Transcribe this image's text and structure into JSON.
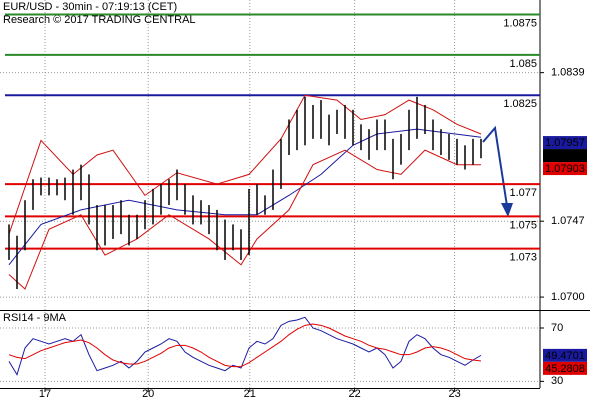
{
  "chart_data": [
    {
      "type": "range",
      "title": "EUR/USD - 30min - 07:19:13 (CET)",
      "subtitle": "Research © 2017 TRADING CENTRAL",
      "x": [
        0,
        1,
        2,
        3,
        4,
        5,
        6,
        7,
        8,
        9,
        10,
        11,
        12,
        13,
        14,
        15,
        16,
        17,
        18,
        19,
        20,
        21,
        22,
        23,
        24,
        25,
        26,
        27,
        28,
        29,
        30,
        31,
        32,
        33,
        34,
        35,
        36,
        37,
        38,
        39,
        40,
        41,
        42,
        43,
        44,
        45,
        46,
        47,
        48,
        49,
        50,
        51,
        52,
        53,
        54,
        55,
        56,
        57,
        58,
        59
      ],
      "xlim": [
        -0.5,
        59.5
      ],
      "xticks": [
        {
          "value": 4.5,
          "label": "17"
        },
        {
          "value": 17.4,
          "label": "20"
        },
        {
          "value": 30.1,
          "label": "21"
        },
        {
          "value": 43.2,
          "label": "22"
        },
        {
          "value": 55.7,
          "label": "23"
        }
      ],
      "ylim": [
        1.0692,
        1.0884
      ],
      "yticks": [
        {
          "value": 1.07,
          "label": "1.0700"
        },
        1.0747,
        1.0839
      ],
      "grid": true,
      "color": "#000000",
      "high": [
        1.0745,
        1.0738,
        1.076,
        1.0773,
        1.0774,
        1.0774,
        1.0773,
        1.0774,
        1.0779,
        1.0782,
        1.0776,
        1.0757,
        1.0757,
        1.0757,
        1.076,
        1.0751,
        1.0751,
        1.076,
        1.0767,
        1.077,
        1.0773,
        1.0779,
        1.077,
        1.0763,
        1.076,
        1.0757,
        1.0754,
        1.0748,
        1.0745,
        1.0742,
        1.0767,
        1.077,
        1.0763,
        1.0779,
        1.0798,
        1.081,
        1.0816,
        1.0824,
        1.0819,
        1.0822,
        1.0813,
        1.0816,
        1.0819,
        1.0816,
        1.0807,
        1.0804,
        1.081,
        1.081,
        1.0798,
        1.0801,
        1.0816,
        1.0824,
        1.0819,
        1.081,
        1.0804,
        1.0801,
        1.0798,
        1.0794,
        1.0798,
        1.0798
      ],
      "low": [
        1.0723,
        1.0705,
        1.0729,
        1.0754,
        1.0763,
        1.0763,
        1.0763,
        1.076,
        1.0751,
        1.076,
        1.0745,
        1.0729,
        1.0732,
        1.0736,
        1.0739,
        1.0732,
        1.0736,
        1.0742,
        1.0745,
        1.0751,
        1.0757,
        1.076,
        1.0751,
        1.0745,
        1.0745,
        1.0739,
        1.0729,
        1.0723,
        1.0729,
        1.0723,
        1.0726,
        1.0751,
        1.0751,
        1.0754,
        1.0767,
        1.0788,
        1.0791,
        1.0794,
        1.0798,
        1.0798,
        1.0794,
        1.0801,
        1.0798,
        1.0794,
        1.0791,
        1.0785,
        1.0791,
        1.0791,
        1.0773,
        1.0782,
        1.0791,
        1.0798,
        1.0801,
        1.0791,
        1.0788,
        1.0785,
        1.0782,
        1.0779,
        1.0782,
        1.0786
      ],
      "lines": [
        {
          "color": "#1a1aa0",
          "x": [
            0,
            4,
            9,
            15,
            21,
            27,
            31,
            35,
            39,
            43,
            46,
            51,
            59
          ],
          "values": [
            1.072,
            1.0745,
            1.0754,
            1.076,
            1.0754,
            1.0751,
            1.0751,
            1.0763,
            1.0776,
            1.0794,
            1.0801,
            1.0804,
            1.0799
          ]
        },
        {
          "color": "#d01010",
          "x": [
            0,
            4,
            8,
            11,
            13,
            17,
            21,
            26,
            30,
            34,
            37,
            41,
            44,
            47,
            50,
            53,
            56,
            59
          ],
          "values": [
            1.0739,
            1.0797,
            1.0776,
            1.0788,
            1.0791,
            1.0763,
            1.0777,
            1.077,
            1.0776,
            1.0798,
            1.0825,
            1.0822,
            1.081,
            1.0813,
            1.0822,
            1.0816,
            1.0807,
            1.0801
          ]
        },
        {
          "color": "#d01010",
          "x": [
            0,
            2,
            5,
            9,
            12,
            16,
            20,
            25,
            29,
            31,
            35,
            38,
            42,
            46,
            49,
            52,
            56,
            59
          ],
          "values": [
            1.0714,
            1.0705,
            1.0742,
            1.0751,
            1.0726,
            1.0736,
            1.0751,
            1.0736,
            1.072,
            1.0736,
            1.0754,
            1.0782,
            1.0791,
            1.0779,
            1.0776,
            1.0791,
            1.0782,
            1.0782
          ]
        }
      ],
      "levels": {
        "values": [
          1.0875,
          1.085,
          1.0825,
          1.077,
          1.075,
          1.073
        ],
        "colors": [
          "#2a8a2a",
          "#2a8a2a",
          "#1a1aa0",
          "#e00000",
          "#e00000",
          "#e00000"
        ]
      },
      "markers": {
        "values": [
          1.07957,
          1.07919,
          1.07903
        ],
        "colors": [
          "#1a1aa0",
          "#000000",
          "#e00000"
        ]
      }
    },
    {
      "type": "line",
      "title": "RSI14 - 9MA",
      "x": [
        0,
        1,
        2,
        3,
        4,
        5,
        6,
        7,
        8,
        9,
        10,
        11,
        12,
        13,
        14,
        15,
        16,
        17,
        18,
        19,
        20,
        21,
        22,
        23,
        24,
        25,
        26,
        27,
        28,
        29,
        30,
        31,
        32,
        33,
        34,
        35,
        36,
        37,
        38,
        39,
        40,
        41,
        42,
        43,
        44,
        45,
        46,
        47,
        48,
        49,
        50,
        51,
        52,
        53,
        54,
        55,
        56,
        57,
        58,
        59
      ],
      "xlim": [
        -0.5,
        59.5
      ],
      "ylim": [
        25,
        82
      ],
      "yticks": [
        30,
        70
      ],
      "grid": true,
      "series": [
        {
          "color": "#1a1aa0",
          "values": [
            45,
            35,
            55,
            62,
            60,
            58,
            60,
            62,
            60,
            65,
            50,
            38,
            40,
            42,
            45,
            40,
            45,
            52,
            55,
            58,
            62,
            60,
            52,
            48,
            45,
            42,
            40,
            38,
            42,
            40,
            55,
            60,
            58,
            62,
            72,
            75,
            76,
            78,
            70,
            68,
            65,
            62,
            60,
            58,
            55,
            52,
            55,
            50,
            40,
            45,
            60,
            65,
            62,
            55,
            50,
            48,
            45,
            42,
            46,
            49.4701
          ]
        },
        {
          "color": "#e00000",
          "values": [
            50,
            48,
            47,
            50,
            53,
            55,
            57,
            59,
            60,
            61,
            59,
            55,
            50,
            46,
            44,
            43,
            43,
            45,
            48,
            51,
            55,
            57,
            57,
            55,
            52,
            48,
            45,
            42,
            41,
            41,
            44,
            48,
            52,
            56,
            60,
            65,
            69,
            72,
            73,
            72,
            70,
            67,
            64,
            62,
            60,
            57,
            55,
            54,
            52,
            50,
            50,
            52,
            55,
            56,
            55,
            53,
            50,
            47,
            46,
            45.2808
          ]
        }
      ]
    }
  ]
}
